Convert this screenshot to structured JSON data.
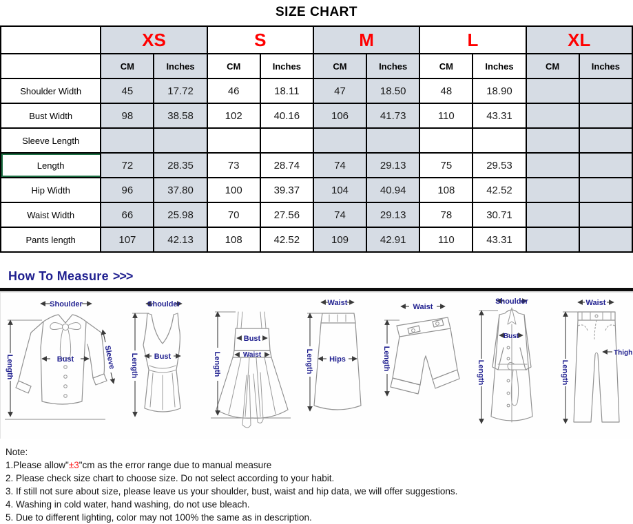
{
  "title": "SIZE CHART",
  "table": {
    "sizes": [
      "XS",
      "S",
      "M",
      "L",
      "XL"
    ],
    "unit_headers": [
      "CM",
      "Inches"
    ],
    "shaded_groups": [
      0,
      2,
      4
    ],
    "shade_color": "#D6DCE4",
    "size_label_color": "#FF0000",
    "selected_row_border_color": "#1E7145",
    "rows": [
      {
        "label": "Shoulder Width",
        "selected": false,
        "values": [
          "45",
          "17.72",
          "46",
          "18.11",
          "47",
          "18.50",
          "48",
          "18.90",
          "",
          ""
        ]
      },
      {
        "label": "Bust Width",
        "selected": false,
        "values": [
          "98",
          "38.58",
          "102",
          "40.16",
          "106",
          "41.73",
          "110",
          "43.31",
          "",
          ""
        ]
      },
      {
        "label": "Sleeve Length",
        "selected": false,
        "values": [
          "",
          "",
          "",
          "",
          "",
          "",
          "",
          "",
          "",
          ""
        ]
      },
      {
        "label": "Length",
        "selected": true,
        "values": [
          "72",
          "28.35",
          "73",
          "28.74",
          "74",
          "29.13",
          "75",
          "29.53",
          "",
          ""
        ]
      },
      {
        "label": "Hip Width",
        "selected": false,
        "values": [
          "96",
          "37.80",
          "100",
          "39.37",
          "104",
          "40.94",
          "108",
          "42.52",
          "",
          ""
        ]
      },
      {
        "label": "Waist Width",
        "selected": false,
        "values": [
          "66",
          "25.98",
          "70",
          "27.56",
          "74",
          "29.13",
          "78",
          "30.71",
          "",
          ""
        ]
      },
      {
        "label": "Pants length",
        "selected": false,
        "values": [
          "107",
          "42.13",
          "108",
          "42.52",
          "109",
          "42.91",
          "110",
          "43.31",
          "",
          ""
        ]
      }
    ]
  },
  "measure_section": {
    "title": "How To Measure",
    "arrows": ">>>",
    "title_color": "#1F1F8F"
  },
  "diagrams": [
    {
      "name": "blouse",
      "labels": [
        "Shoulder",
        "Length",
        "Bust",
        "Sleeve"
      ]
    },
    {
      "name": "tank-top",
      "labels": [
        "Shoulder",
        "Length",
        "Bust"
      ]
    },
    {
      "name": "dress",
      "labels": [
        "Length",
        "Bust",
        "Waist"
      ]
    },
    {
      "name": "skirt",
      "labels": [
        "Waist",
        "Length",
        "Hips"
      ]
    },
    {
      "name": "shorts",
      "labels": [
        "Waist",
        "Length"
      ]
    },
    {
      "name": "coat",
      "labels": [
        "Shoulder",
        "Length",
        "Bust"
      ]
    },
    {
      "name": "pants",
      "labels": [
        "Waist",
        "Length",
        "Thigh"
      ]
    }
  ],
  "notes": {
    "heading": "Note:",
    "item1": {
      "prefix": "1.Please allow\"",
      "highlight": "±3",
      "suffix": "\"cm as the error range due to manual measure"
    },
    "items": [
      "2. Please check size chart to choose size. Do not select according to your habit.",
      "3. If still not sure about size, please leave us your shoulder, bust, waist and hip data, we will offer suggestions.",
      "4. Washing in cold water, hand washing, do not use bleach.",
      "5. Due to different lighting, color may not 100% the same as in description."
    ]
  }
}
